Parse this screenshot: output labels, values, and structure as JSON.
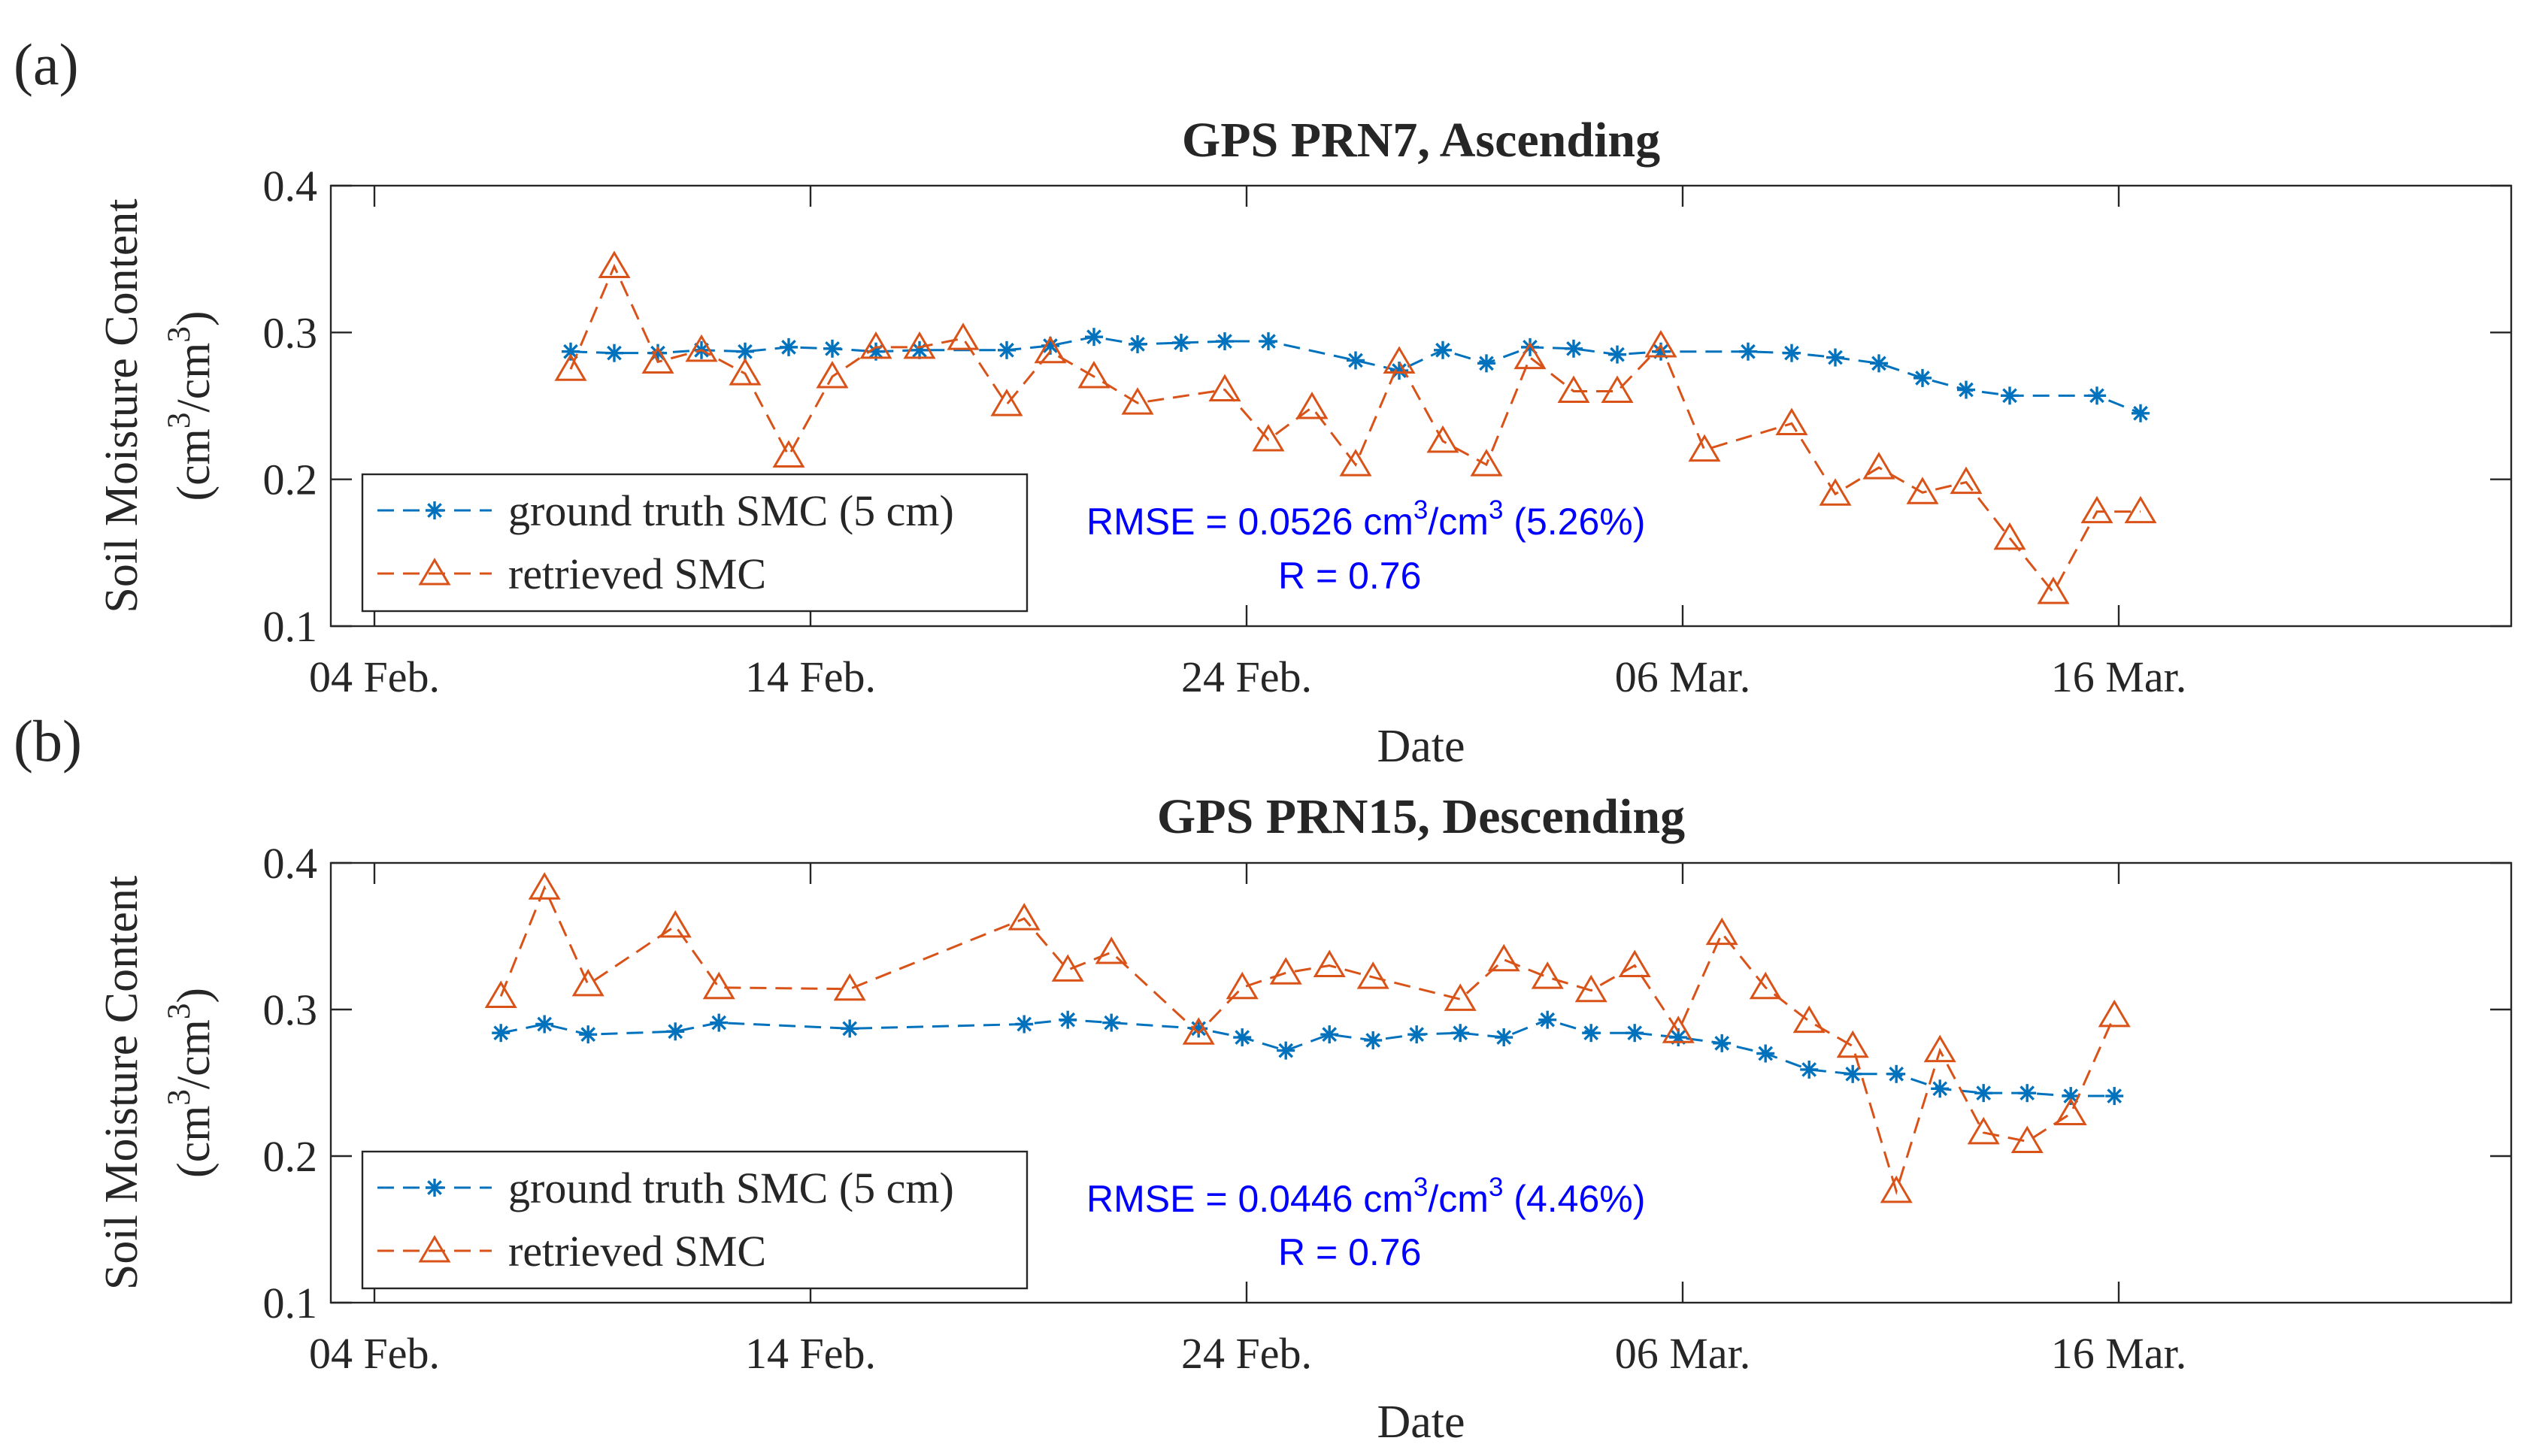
{
  "figure": {
    "xlabel": "Date",
    "ylabel_line1": "Soil Moisture Content",
    "ylabel_unit": "(cm³/cm³)",
    "legend": {
      "ground": "ground truth SMC (5 cm)",
      "retrieved": "retrieved SMC"
    },
    "colors": {
      "ground": "#0072BD",
      "retrieved": "#D95319",
      "stats": "#0000FF",
      "axis": "#262626"
    }
  },
  "chart_data": [
    {
      "panel_label": "(a)",
      "type": "line",
      "title": "GPS PRN7, Ascending",
      "xlabel": "Date",
      "ylabel": "Soil Moisture Content (cm³/cm³)",
      "xlim": [
        0,
        50
      ],
      "ylim": [
        0.1,
        0.4
      ],
      "x_ticks": [
        1,
        11,
        21,
        31,
        41
      ],
      "x_tick_labels": [
        "04 Feb.",
        "14 Feb.",
        "24 Feb.",
        "06 Mar.",
        "16 Mar."
      ],
      "y_ticks": [
        0.1,
        0.2,
        0.3,
        0.4
      ],
      "y_tick_labels": [
        "0.1",
        "0.2",
        "0.3",
        "0.4"
      ],
      "legend_position": "bottom-left",
      "annotation": {
        "rmse": "RMSE = 0.0526 cm³/cm³ (5.26%)",
        "r": "R = 0.76"
      },
      "series": [
        {
          "name": "ground truth SMC (5 cm)",
          "marker": "asterisk",
          "x": [
            5.5,
            6.5,
            7.5,
            8.5,
            9.5,
            10.5,
            11.5,
            12.5,
            13.5,
            15.5,
            16.5,
            17.5,
            18.5,
            19.5,
            20.5,
            21.5,
            23.5,
            24.5,
            25.5,
            26.5,
            27.5,
            28.5,
            29.5,
            30.5,
            32.5,
            33.5,
            34.5,
            35.5,
            36.5,
            37.5,
            38.5,
            40.5,
            41.5
          ],
          "values": [
            0.287,
            0.286,
            0.286,
            0.288,
            0.287,
            0.29,
            0.289,
            0.287,
            0.288,
            0.288,
            0.291,
            0.297,
            0.292,
            0.293,
            0.294,
            0.294,
            0.281,
            0.274,
            0.288,
            0.279,
            0.29,
            0.289,
            0.285,
            0.287,
            0.287,
            0.286,
            0.283,
            0.279,
            0.269,
            0.261,
            0.257,
            0.257,
            0.245
          ]
        },
        {
          "name": "retrieved SMC",
          "marker": "triangle",
          "x": [
            5.5,
            6.5,
            7.5,
            8.5,
            9.5,
            10.5,
            11.5,
            12.5,
            13.5,
            14.5,
            15.5,
            16.5,
            17.5,
            18.5,
            20.5,
            21.5,
            22.5,
            23.5,
            24.5,
            25.5,
            26.5,
            27.5,
            28.5,
            29.5,
            30.5,
            31.5,
            33.5,
            34.5,
            35.5,
            36.5,
            37.5,
            38.5,
            39.5,
            40.5,
            41.5
          ],
          "values": [
            0.275,
            0.345,
            0.28,
            0.288,
            0.272,
            0.216,
            0.27,
            0.29,
            0.29,
            0.296,
            0.251,
            0.287,
            0.27,
            0.252,
            0.261,
            0.227,
            0.249,
            0.21,
            0.28,
            0.226,
            0.21,
            0.283,
            0.26,
            0.26,
            0.291,
            0.22,
            0.238,
            0.19,
            0.208,
            0.191,
            0.198,
            0.16,
            0.123,
            0.178,
            0.178
          ]
        }
      ]
    },
    {
      "panel_label": "(b)",
      "type": "line",
      "title": "GPS PRN15, Descending",
      "xlabel": "Date",
      "ylabel": "Soil Moisture Content (cm³/cm³)",
      "xlim": [
        0,
        50
      ],
      "ylim": [
        0.1,
        0.4
      ],
      "x_ticks": [
        1,
        11,
        21,
        31,
        41
      ],
      "x_tick_labels": [
        "04 Feb.",
        "14 Feb.",
        "24 Feb.",
        "06 Mar.",
        "16 Mar."
      ],
      "y_ticks": [
        0.1,
        0.2,
        0.3,
        0.4
      ],
      "y_tick_labels": [
        "0.1",
        "0.2",
        "0.3",
        "0.4"
      ],
      "legend_position": "bottom-left",
      "annotation": {
        "rmse": "RMSE = 0.0446 cm³/cm³ (4.46%)",
        "r": "R = 0.76"
      },
      "series": [
        {
          "name": "ground truth SMC (5 cm)",
          "marker": "asterisk",
          "x": [
            3.9,
            4.9,
            5.9,
            7.9,
            8.9,
            11.9,
            15.9,
            16.9,
            17.9,
            19.9,
            20.9,
            21.9,
            22.9,
            23.9,
            24.9,
            25.9,
            26.9,
            27.9,
            28.9,
            29.9,
            30.9,
            31.9,
            32.9,
            33.9,
            34.9,
            35.9,
            36.9,
            37.9,
            38.9,
            39.9,
            40.9
          ],
          "values": [
            0.284,
            0.29,
            0.283,
            0.285,
            0.291,
            0.287,
            0.29,
            0.293,
            0.291,
            0.287,
            0.281,
            0.272,
            0.283,
            0.279,
            0.283,
            0.284,
            0.281,
            0.293,
            0.284,
            0.284,
            0.281,
            0.277,
            0.27,
            0.259,
            0.256,
            0.256,
            0.246,
            0.243,
            0.243,
            0.241,
            0.241
          ]
        },
        {
          "name": "retrieved SMC",
          "marker": "triangle",
          "x": [
            3.9,
            4.9,
            5.9,
            7.9,
            8.9,
            11.9,
            15.9,
            16.9,
            17.9,
            19.9,
            20.9,
            21.9,
            22.9,
            23.9,
            25.9,
            26.9,
            27.9,
            28.9,
            29.9,
            30.9,
            31.9,
            32.9,
            33.9,
            34.9,
            35.9,
            36.9,
            37.9,
            38.9,
            39.9,
            40.9
          ],
          "values": [
            0.309,
            0.383,
            0.317,
            0.357,
            0.315,
            0.314,
            0.362,
            0.327,
            0.339,
            0.284,
            0.315,
            0.325,
            0.33,
            0.322,
            0.307,
            0.334,
            0.322,
            0.313,
            0.33,
            0.285,
            0.352,
            0.315,
            0.292,
            0.275,
            0.176,
            0.272,
            0.216,
            0.21,
            0.229,
            0.296
          ]
        }
      ]
    }
  ]
}
